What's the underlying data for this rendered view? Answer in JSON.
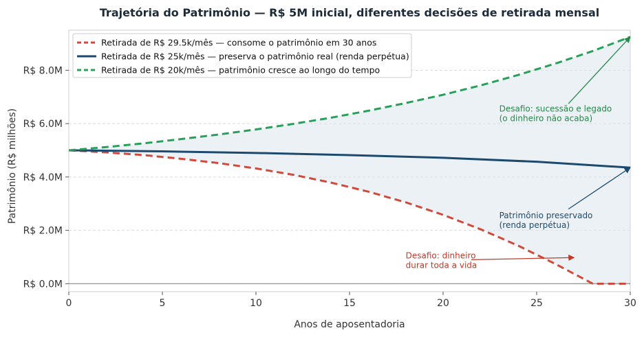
{
  "chart_data": {
    "type": "line",
    "title": "Trajetória do Patrimônio — R$ 5M inicial, diferentes decisões de retirada mensal",
    "xlabel": "Anos de aposentadoria",
    "ylabel": "Patrimônio (R$ milhões)",
    "xlim": [
      0,
      30
    ],
    "ylim": [
      -0.3,
      9.5
    ],
    "x_ticks": [
      0,
      5,
      10,
      15,
      20,
      25,
      30
    ],
    "x_tick_labels": [
      "0",
      "5",
      "10",
      "15",
      "20",
      "25",
      "30"
    ],
    "y_ticks": [
      0,
      2,
      4,
      6,
      8
    ],
    "y_tick_labels": [
      "R$ 0.0M",
      "R$ 2.0M",
      "R$ 4.0M",
      "R$ 6.0M",
      "R$ 8.0M"
    ],
    "grid": "horizontal dashed",
    "legend_position": "top-left",
    "shaded_region": "between highest and lowest series",
    "series": [
      {
        "name": "Retirada de R$ 29.5k/mês — consome o patrimônio em 30 anos",
        "color": "#d1493a",
        "style": "dashed",
        "x": [
          0,
          2,
          4,
          6,
          8,
          10,
          12,
          14,
          16,
          18,
          20,
          22,
          24,
          26,
          28,
          30
        ],
        "values": [
          5.0,
          4.92,
          4.82,
          4.68,
          4.52,
          4.32,
          4.08,
          3.79,
          3.45,
          3.05,
          2.58,
          2.04,
          1.43,
          0.74,
          0.0,
          0.0
        ]
      },
      {
        "name": "Retirada de R$ 25k/mês — preserva o patrimônio real (renda perpétua)",
        "color": "#1c4a6e",
        "style": "solid",
        "x": [
          0,
          5,
          10,
          15,
          20,
          25,
          30
        ],
        "values": [
          5.0,
          4.96,
          4.9,
          4.82,
          4.72,
          4.57,
          4.35
        ]
      },
      {
        "name": "Retirada de R$ 20k/mês — patrimônio cresce ao longo do tempo",
        "color": "#27a05a",
        "style": "dashed",
        "x": [
          0,
          2,
          4,
          6,
          8,
          10,
          12,
          14,
          16,
          18,
          20,
          22,
          24,
          26,
          28,
          30
        ],
        "values": [
          5.0,
          5.12,
          5.26,
          5.42,
          5.59,
          5.78,
          5.99,
          6.22,
          6.48,
          6.77,
          7.08,
          7.43,
          7.82,
          8.25,
          8.72,
          9.25
        ]
      }
    ],
    "annotations": [
      {
        "text": "Desafio: sucessão e legado\n(o dinheiro não acaba)",
        "color": "#27884a",
        "text_x": 23.0,
        "text_y": 6.45,
        "arrow_to": [
          30,
          9.25
        ],
        "arrow_from": [
          26.7,
          6.75
        ]
      },
      {
        "text": "Patrimônio preservado\n(renda perpétua)",
        "color": "#1c4a6e",
        "text_x": 23.0,
        "text_y": 2.45,
        "arrow_to": [
          30,
          4.35
        ],
        "arrow_from": [
          26.7,
          2.8
        ]
      },
      {
        "text": "Desafio: dinheiro\ndurar toda a vida",
        "color": "#c0392b",
        "text_x": 18.0,
        "text_y": 0.95,
        "arrow_to": [
          27,
          0.98
        ],
        "arrow_from": [
          21.5,
          0.9
        ]
      }
    ]
  }
}
